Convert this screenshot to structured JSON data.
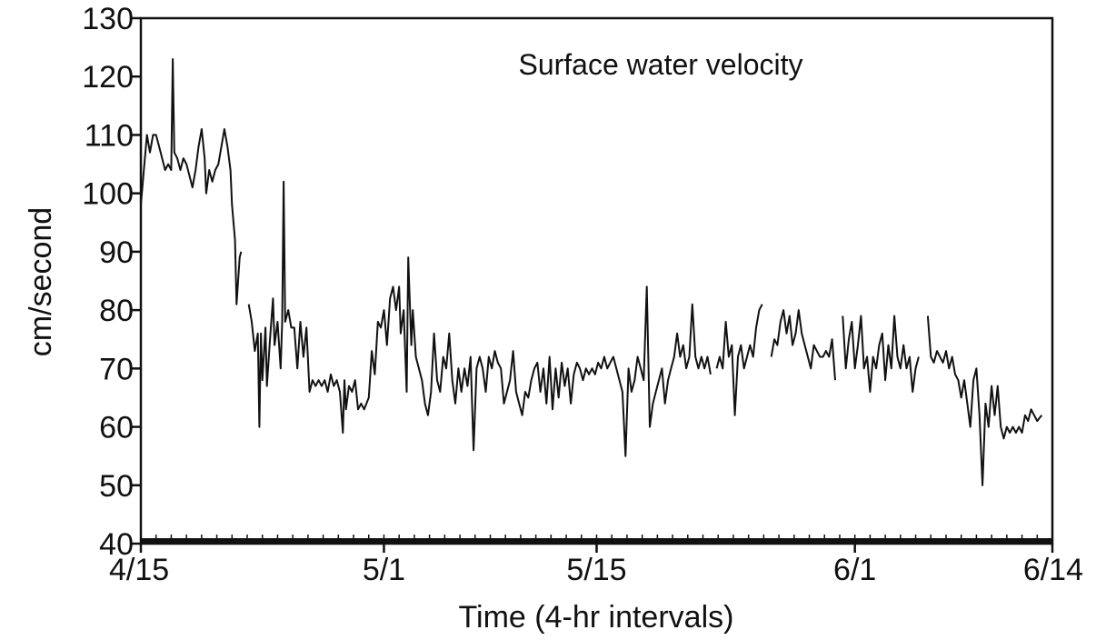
{
  "chart_data": {
    "type": "line",
    "title": "Surface water velocity",
    "xlabel": "Time (4-hr intervals)",
    "ylabel": "cm/second",
    "ylim": [
      40,
      130
    ],
    "yticks": [
      40,
      50,
      60,
      70,
      80,
      90,
      100,
      110,
      120,
      130
    ],
    "xlim_days": [
      0,
      60
    ],
    "xticks": [
      {
        "label": "4/15",
        "day": 0
      },
      {
        "label": "5/1",
        "day": 16
      },
      {
        "label": "5/15",
        "day": 30
      },
      {
        "label": "6/1",
        "day": 47
      },
      {
        "label": "6/14",
        "day": 60
      }
    ],
    "grid": false,
    "legend": "none",
    "line_color": "#111111",
    "series": [
      {
        "name": "",
        "points": [
          [
            0.0,
            98
          ],
          [
            0.2,
            104
          ],
          [
            0.4,
            110
          ],
          [
            0.6,
            107
          ],
          [
            0.8,
            110
          ],
          [
            1.0,
            110
          ],
          [
            1.2,
            108
          ],
          [
            1.4,
            106
          ],
          [
            1.6,
            104
          ],
          [
            1.8,
            105
          ],
          [
            2.0,
            104
          ],
          [
            2.1,
            123
          ],
          [
            2.2,
            107
          ],
          [
            2.4,
            106
          ],
          [
            2.6,
            104
          ],
          [
            2.8,
            106
          ],
          [
            3.0,
            105
          ],
          [
            3.2,
            103
          ],
          [
            3.4,
            101
          ],
          [
            3.6,
            104
          ],
          [
            3.8,
            108
          ],
          [
            4.0,
            111
          ],
          [
            4.2,
            106
          ],
          [
            4.3,
            100
          ],
          [
            4.5,
            104
          ],
          [
            4.7,
            102
          ],
          [
            4.9,
            104
          ],
          [
            5.1,
            105
          ],
          [
            5.3,
            108
          ],
          [
            5.5,
            111
          ],
          [
            5.7,
            108
          ],
          [
            5.9,
            104
          ],
          [
            6.0,
            98
          ],
          [
            6.2,
            92
          ],
          [
            6.3,
            81
          ],
          [
            6.5,
            89
          ],
          [
            6.6,
            90
          ],
          [
            7.1,
            81
          ],
          [
            7.3,
            78
          ],
          [
            7.5,
            73
          ],
          [
            7.7,
            76
          ],
          [
            7.8,
            60
          ],
          [
            7.9,
            76
          ],
          [
            8.0,
            68
          ],
          [
            8.2,
            77
          ],
          [
            8.3,
            67
          ],
          [
            8.5,
            75
          ],
          [
            8.7,
            82
          ],
          [
            8.8,
            74
          ],
          [
            9.0,
            78
          ],
          [
            9.2,
            70
          ],
          [
            9.3,
            78
          ],
          [
            9.4,
            102
          ],
          [
            9.5,
            78
          ],
          [
            9.7,
            80
          ],
          [
            9.9,
            77
          ],
          [
            10.1,
            77
          ],
          [
            10.3,
            70
          ],
          [
            10.5,
            78
          ],
          [
            10.7,
            72
          ],
          [
            10.9,
            77
          ],
          [
            11.1,
            66
          ],
          [
            11.3,
            68
          ],
          [
            11.5,
            67
          ],
          [
            11.7,
            68
          ],
          [
            11.9,
            67
          ],
          [
            12.1,
            68
          ],
          [
            12.3,
            66
          ],
          [
            12.5,
            69
          ],
          [
            12.7,
            67
          ],
          [
            12.9,
            68
          ],
          [
            13.1,
            66
          ],
          [
            13.3,
            59
          ],
          [
            13.4,
            68
          ],
          [
            13.5,
            63
          ],
          [
            13.7,
            67
          ],
          [
            13.9,
            66
          ],
          [
            14.1,
            68
          ],
          [
            14.3,
            63
          ],
          [
            14.5,
            64
          ],
          [
            14.7,
            63
          ],
          [
            15.0,
            65
          ],
          [
            15.2,
            73
          ],
          [
            15.4,
            69
          ],
          [
            15.6,
            78
          ],
          [
            15.8,
            77
          ],
          [
            16.0,
            80
          ],
          [
            16.2,
            74
          ],
          [
            16.4,
            82
          ],
          [
            16.6,
            84
          ],
          [
            16.8,
            80
          ],
          [
            17.0,
            84
          ],
          [
            17.1,
            76
          ],
          [
            17.3,
            80
          ],
          [
            17.5,
            66
          ],
          [
            17.6,
            89
          ],
          [
            17.8,
            74
          ],
          [
            17.9,
            80
          ],
          [
            18.1,
            72
          ],
          [
            18.3,
            70
          ],
          [
            18.5,
            68
          ],
          [
            18.7,
            64
          ],
          [
            18.9,
            62
          ],
          [
            19.1,
            66
          ],
          [
            19.3,
            76
          ],
          [
            19.5,
            68
          ],
          [
            19.7,
            66
          ],
          [
            19.9,
            72
          ],
          [
            20.1,
            70
          ],
          [
            20.3,
            76
          ],
          [
            20.5,
            68
          ],
          [
            20.7,
            64
          ],
          [
            20.9,
            70
          ],
          [
            21.1,
            66
          ],
          [
            21.3,
            70
          ],
          [
            21.5,
            67
          ],
          [
            21.7,
            72
          ],
          [
            21.9,
            56
          ],
          [
            22.1,
            70
          ],
          [
            22.3,
            72
          ],
          [
            22.5,
            70
          ],
          [
            22.7,
            66
          ],
          [
            22.9,
            72
          ],
          [
            23.1,
            70
          ],
          [
            23.3,
            73
          ],
          [
            23.5,
            71
          ],
          [
            23.7,
            70
          ],
          [
            23.9,
            64
          ],
          [
            24.1,
            66
          ],
          [
            24.3,
            68
          ],
          [
            24.5,
            73
          ],
          [
            24.7,
            66
          ],
          [
            24.9,
            64
          ],
          [
            25.1,
            62
          ],
          [
            25.3,
            66
          ],
          [
            25.5,
            65
          ],
          [
            25.7,
            68
          ],
          [
            25.9,
            70
          ],
          [
            26.1,
            71
          ],
          [
            26.3,
            66
          ],
          [
            26.5,
            70
          ],
          [
            26.7,
            64
          ],
          [
            26.9,
            72
          ],
          [
            27.1,
            63
          ],
          [
            27.3,
            70
          ],
          [
            27.5,
            65
          ],
          [
            27.7,
            71
          ],
          [
            27.9,
            67
          ],
          [
            28.1,
            70
          ],
          [
            28.3,
            64
          ],
          [
            28.5,
            69
          ],
          [
            28.7,
            71
          ],
          [
            28.9,
            70
          ],
          [
            29.1,
            68
          ],
          [
            29.3,
            70
          ],
          [
            29.5,
            69
          ],
          [
            29.7,
            70
          ],
          [
            29.9,
            69
          ],
          [
            30.1,
            71
          ],
          [
            30.3,
            70
          ],
          [
            30.5,
            72
          ],
          [
            30.7,
            70
          ],
          [
            30.9,
            71
          ],
          [
            31.1,
            72
          ],
          [
            31.3,
            70
          ],
          [
            31.5,
            68
          ],
          [
            31.7,
            66
          ],
          [
            31.9,
            55
          ],
          [
            32.1,
            70
          ],
          [
            32.3,
            66
          ],
          [
            32.5,
            68
          ],
          [
            32.7,
            72
          ],
          [
            32.9,
            70
          ],
          [
            33.1,
            68
          ],
          [
            33.3,
            84
          ],
          [
            33.5,
            60
          ],
          [
            33.7,
            64
          ],
          [
            33.9,
            66
          ],
          [
            34.1,
            68
          ],
          [
            34.3,
            70
          ],
          [
            34.5,
            64
          ],
          [
            34.7,
            68
          ],
          [
            34.9,
            70
          ],
          [
            35.1,
            72
          ],
          [
            35.3,
            76
          ],
          [
            35.5,
            72
          ],
          [
            35.7,
            74
          ],
          [
            35.9,
            70
          ],
          [
            36.1,
            72
          ],
          [
            36.3,
            81
          ],
          [
            36.5,
            72
          ],
          [
            36.7,
            70
          ],
          [
            36.9,
            72
          ],
          [
            37.1,
            70
          ],
          [
            37.3,
            72
          ],
          [
            37.5,
            69
          ],
          [
            37.9,
            70
          ],
          [
            38.1,
            72
          ],
          [
            38.3,
            70
          ],
          [
            38.5,
            78
          ],
          [
            38.7,
            72
          ],
          [
            38.9,
            74
          ],
          [
            39.1,
            62
          ],
          [
            39.3,
            72
          ],
          [
            39.5,
            74
          ],
          [
            39.7,
            70
          ],
          [
            39.9,
            72
          ],
          [
            40.1,
            74
          ],
          [
            40.3,
            72
          ],
          [
            40.5,
            77
          ],
          [
            40.7,
            80
          ],
          [
            40.9,
            81
          ],
          [
            41.5,
            72
          ],
          [
            41.7,
            75
          ],
          [
            41.9,
            74
          ],
          [
            42.1,
            78
          ],
          [
            42.3,
            80
          ],
          [
            42.5,
            76
          ],
          [
            42.7,
            79
          ],
          [
            42.9,
            74
          ],
          [
            43.1,
            76
          ],
          [
            43.3,
            80
          ],
          [
            43.5,
            76
          ],
          [
            43.7,
            74
          ],
          [
            43.9,
            72
          ],
          [
            44.1,
            70
          ],
          [
            44.3,
            74
          ],
          [
            44.5,
            73
          ],
          [
            44.7,
            72
          ],
          [
            44.9,
            72
          ],
          [
            45.1,
            73
          ],
          [
            45.3,
            72
          ],
          [
            45.5,
            75
          ],
          [
            45.7,
            68
          ],
          [
            46.2,
            79
          ],
          [
            46.4,
            70
          ],
          [
            46.6,
            75
          ],
          [
            46.8,
            78
          ],
          [
            47.0,
            70
          ],
          [
            47.2,
            74
          ],
          [
            47.4,
            79
          ],
          [
            47.6,
            70
          ],
          [
            47.8,
            72
          ],
          [
            48.0,
            66
          ],
          [
            48.2,
            72
          ],
          [
            48.4,
            70
          ],
          [
            48.6,
            74
          ],
          [
            48.8,
            76
          ],
          [
            49.0,
            68
          ],
          [
            49.2,
            74
          ],
          [
            49.4,
            70
          ],
          [
            49.6,
            79
          ],
          [
            49.8,
            72
          ],
          [
            50.0,
            70
          ],
          [
            50.2,
            74
          ],
          [
            50.4,
            70
          ],
          [
            50.6,
            72
          ],
          [
            50.8,
            66
          ],
          [
            51.0,
            70
          ],
          [
            51.2,
            72
          ],
          [
            51.8,
            79
          ],
          [
            52.0,
            72
          ],
          [
            52.2,
            71
          ],
          [
            52.4,
            73
          ],
          [
            52.6,
            72
          ],
          [
            52.8,
            71
          ],
          [
            53.0,
            73
          ],
          [
            53.2,
            70
          ],
          [
            53.4,
            72
          ],
          [
            53.6,
            69
          ],
          [
            53.8,
            68
          ],
          [
            54.0,
            65
          ],
          [
            54.2,
            68
          ],
          [
            54.4,
            64
          ],
          [
            54.6,
            60
          ],
          [
            54.8,
            68
          ],
          [
            55.0,
            70
          ],
          [
            55.2,
            62
          ],
          [
            55.4,
            50
          ],
          [
            55.6,
            64
          ],
          [
            55.8,
            60
          ],
          [
            56.0,
            67
          ],
          [
            56.2,
            62
          ],
          [
            56.4,
            67
          ],
          [
            56.6,
            60
          ],
          [
            56.8,
            58
          ],
          [
            57.0,
            60
          ],
          [
            57.2,
            59
          ],
          [
            57.4,
            60
          ],
          [
            57.6,
            59
          ],
          [
            57.8,
            60
          ],
          [
            58.0,
            59
          ],
          [
            58.2,
            62
          ],
          [
            58.4,
            61
          ],
          [
            58.6,
            63
          ],
          [
            58.8,
            62
          ],
          [
            59.0,
            61
          ],
          [
            59.3,
            62
          ]
        ]
      }
    ]
  }
}
